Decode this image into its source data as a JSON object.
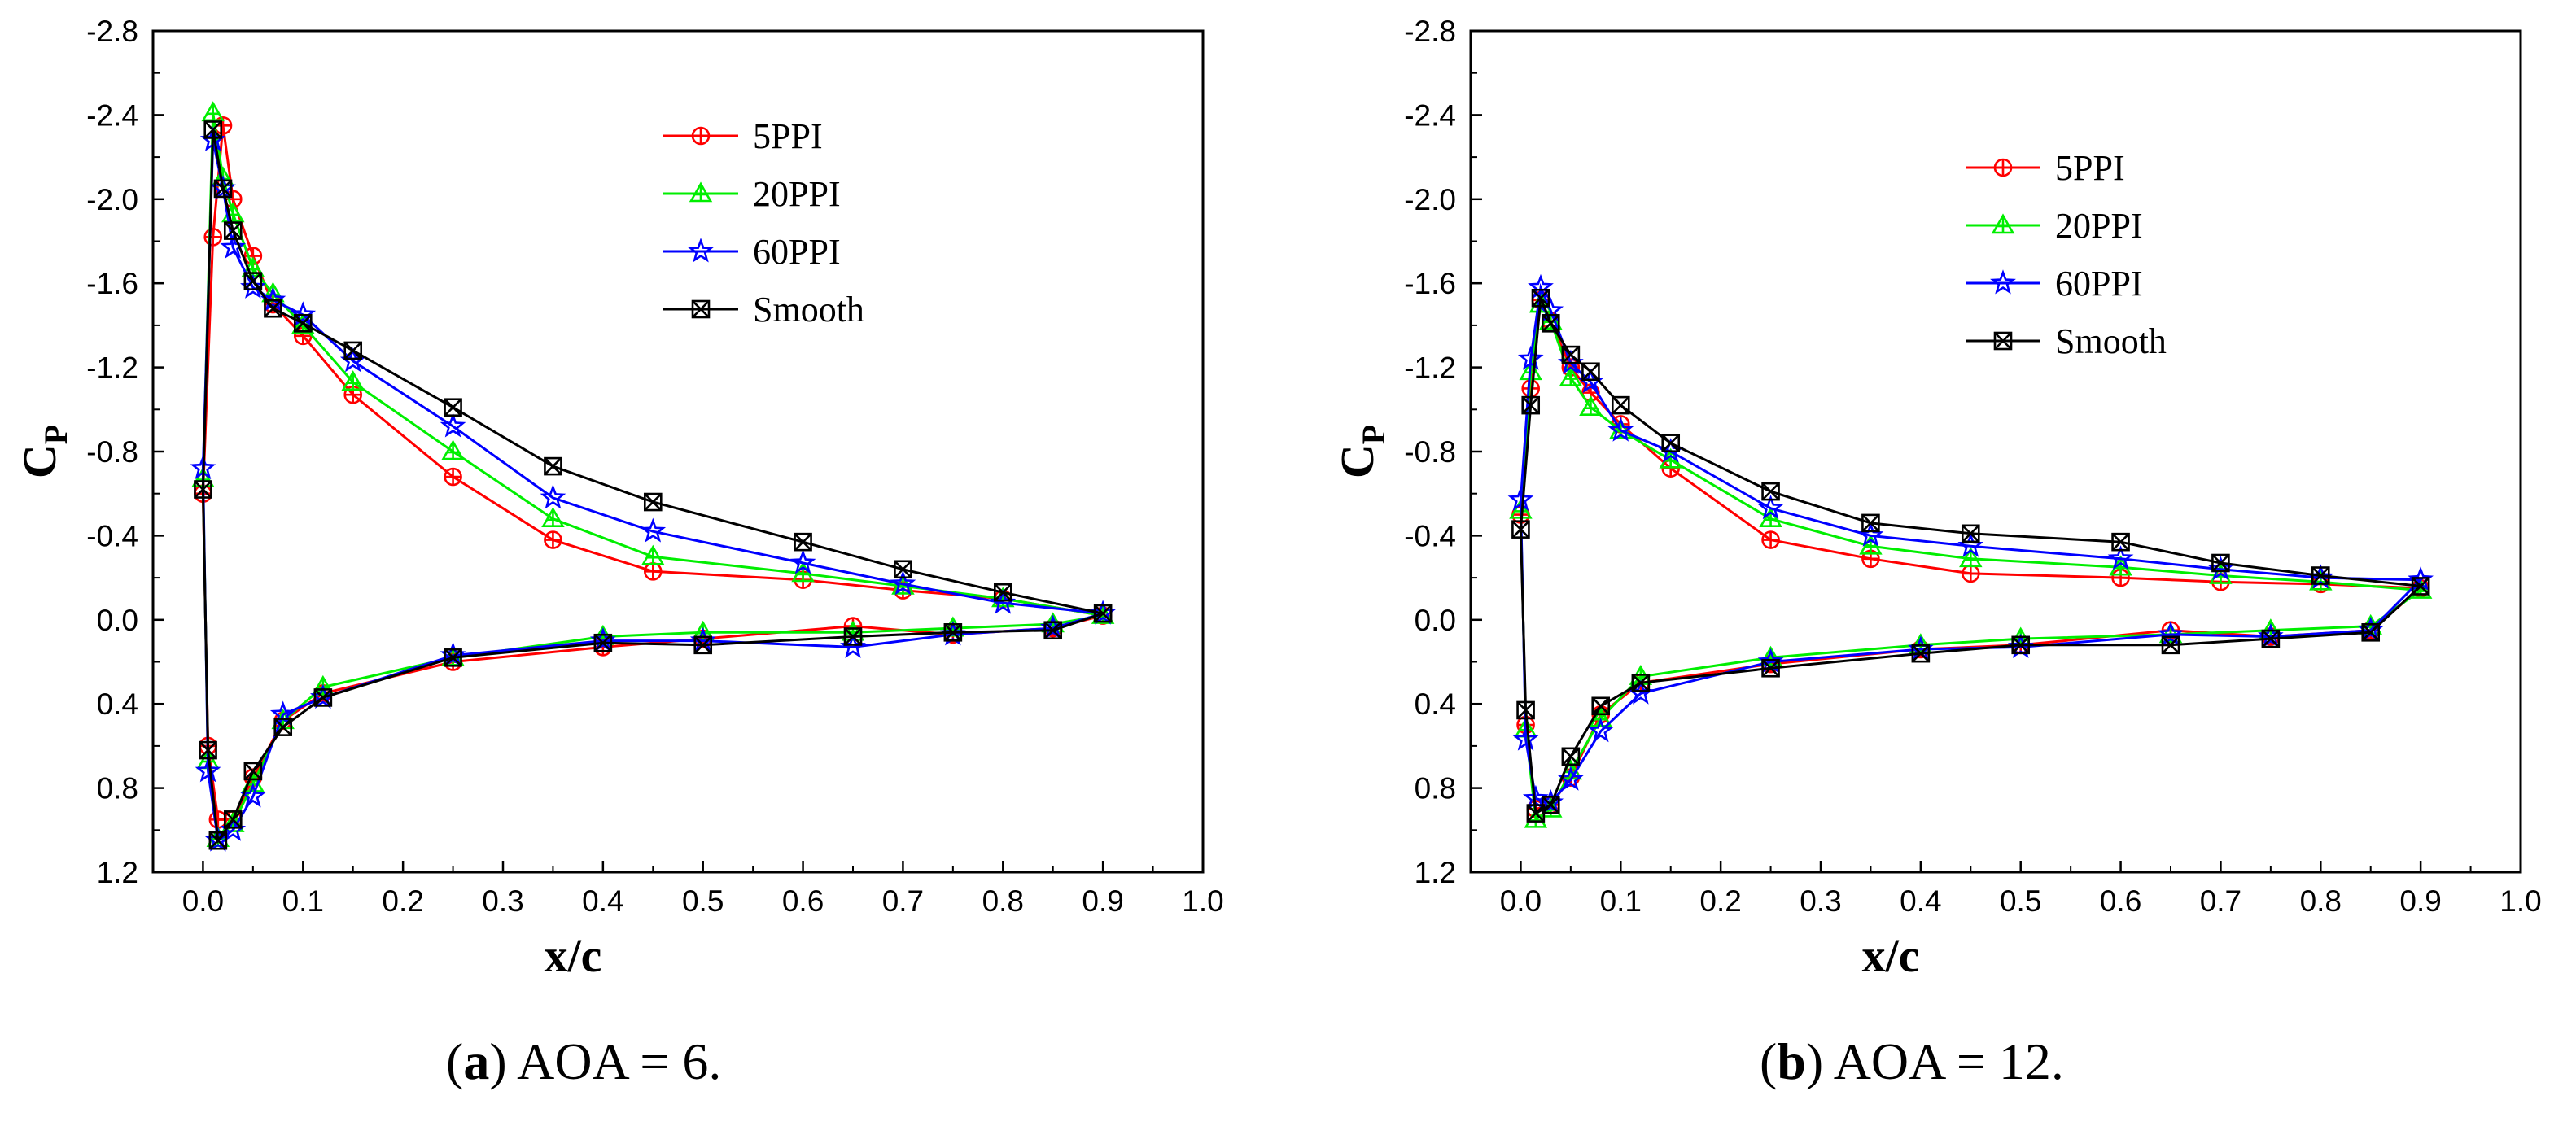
{
  "chart_data": [
    {
      "type": "line",
      "caption_letter": "a",
      "caption_text": "AOA = 6.",
      "xlabel": "x/c",
      "ylabel_main": "C",
      "ylabel_sub": "P",
      "xlim": [
        -0.05,
        1.0
      ],
      "ylim": [
        1.2,
        -2.8
      ],
      "x_ticks": [
        "0.0",
        "0.1",
        "0.2",
        "0.3",
        "0.4",
        "0.5",
        "0.6",
        "0.7",
        "0.8",
        "0.9",
        "1.0"
      ],
      "y_ticks": [
        "-2.8",
        "-2.4",
        "-2.0",
        "-1.6",
        "-1.2",
        "-0.8",
        "-0.4",
        "0.0",
        "0.4",
        "0.8",
        "1.2"
      ],
      "legend_position": "top-right",
      "series": [
        {
          "name": "5PPI",
          "color": "#ff0000",
          "marker": "circle-plus",
          "x": [
            0,
            0.01,
            0.02,
            0.03,
            0.05,
            0.07,
            0.1,
            0.15,
            0.25,
            0.35,
            0.45,
            0.6,
            0.7,
            0.8,
            0.9,
            0.85,
            0.75,
            0.65,
            0.5,
            0.4,
            0.25,
            0.12,
            0.08,
            0.05,
            0.03,
            0.015,
            0.005
          ],
          "y": [
            -0.6,
            -1.82,
            -2.35,
            -2.0,
            -1.73,
            -1.5,
            -1.35,
            -1.07,
            -0.68,
            -0.38,
            -0.23,
            -0.19,
            -0.14,
            -0.1,
            -0.02,
            0.04,
            0.07,
            0.03,
            0.09,
            0.13,
            0.2,
            0.35,
            0.48,
            0.75,
            0.95,
            0.95,
            0.6
          ]
        },
        {
          "name": "20PPI",
          "color": "#00ee00",
          "marker": "triangle-plus",
          "x": [
            0,
            0.01,
            0.02,
            0.03,
            0.05,
            0.07,
            0.1,
            0.15,
            0.25,
            0.35,
            0.45,
            0.6,
            0.7,
            0.8,
            0.9,
            0.85,
            0.75,
            0.65,
            0.5,
            0.4,
            0.25,
            0.12,
            0.08,
            0.05,
            0.03,
            0.015,
            0.005
          ],
          "y": [
            -0.67,
            -2.41,
            -2.1,
            -1.93,
            -1.67,
            -1.55,
            -1.4,
            -1.13,
            -0.8,
            -0.48,
            -0.3,
            -0.22,
            -0.16,
            -0.1,
            -0.02,
            0.02,
            0.04,
            0.06,
            0.06,
            0.08,
            0.18,
            0.32,
            0.48,
            0.78,
            0.97,
            1.04,
            0.67
          ]
        },
        {
          "name": "60PPI",
          "color": "#0000ff",
          "marker": "star",
          "x": [
            0,
            0.01,
            0.02,
            0.03,
            0.05,
            0.07,
            0.1,
            0.15,
            0.25,
            0.35,
            0.45,
            0.6,
            0.7,
            0.8,
            0.9,
            0.85,
            0.75,
            0.65,
            0.5,
            0.4,
            0.25,
            0.12,
            0.08,
            0.05,
            0.03,
            0.015,
            0.005
          ],
          "y": [
            -0.72,
            -2.28,
            -2.05,
            -1.77,
            -1.58,
            -1.52,
            -1.45,
            -1.23,
            -0.92,
            -0.58,
            -0.42,
            -0.27,
            -0.17,
            -0.08,
            -0.03,
            0.04,
            0.07,
            0.13,
            0.1,
            0.1,
            0.17,
            0.37,
            0.45,
            0.84,
            1.0,
            1.05,
            0.72
          ]
        },
        {
          "name": "Smooth",
          "color": "#000000",
          "marker": "box-x",
          "x": [
            0,
            0.01,
            0.02,
            0.03,
            0.05,
            0.07,
            0.1,
            0.15,
            0.25,
            0.35,
            0.45,
            0.6,
            0.7,
            0.8,
            0.9,
            0.85,
            0.75,
            0.65,
            0.5,
            0.4,
            0.25,
            0.12,
            0.08,
            0.05,
            0.03,
            0.015,
            0.005
          ],
          "y": [
            -0.62,
            -2.33,
            -2.05,
            -1.85,
            -1.61,
            -1.48,
            -1.41,
            -1.28,
            -1.01,
            -0.73,
            -0.56,
            -0.37,
            -0.24,
            -0.13,
            -0.03,
            0.05,
            0.06,
            0.08,
            0.12,
            0.11,
            0.18,
            0.37,
            0.51,
            0.72,
            0.95,
            1.05,
            0.62
          ]
        }
      ]
    },
    {
      "type": "line",
      "caption_letter": "b",
      "caption_text": "AOA = 12.",
      "xlabel": "x/c",
      "ylabel_main": "C",
      "ylabel_sub": "P",
      "xlim": [
        -0.05,
        1.0
      ],
      "ylim": [
        1.2,
        -2.8
      ],
      "x_ticks": [
        "0.0",
        "0.1",
        "0.2",
        "0.3",
        "0.4",
        "0.5",
        "0.6",
        "0.7",
        "0.8",
        "0.9",
        "1.0"
      ],
      "y_ticks": [
        "-2.8",
        "-2.4",
        "-2.0",
        "-1.6",
        "-1.2",
        "-0.8",
        "-0.4",
        "0.0",
        "0.4",
        "0.8",
        "1.2"
      ],
      "legend_position": "top-right",
      "series": [
        {
          "name": "5PPI",
          "color": "#ff0000",
          "marker": "circle-plus",
          "x": [
            0,
            0.01,
            0.02,
            0.03,
            0.05,
            0.07,
            0.1,
            0.15,
            0.25,
            0.35,
            0.45,
            0.6,
            0.7,
            0.8,
            0.9,
            0.85,
            0.75,
            0.65,
            0.5,
            0.4,
            0.25,
            0.12,
            0.08,
            0.05,
            0.03,
            0.015,
            0.005
          ],
          "y": [
            -0.5,
            -1.1,
            -1.52,
            -1.42,
            -1.2,
            -1.08,
            -0.93,
            -0.72,
            -0.38,
            -0.29,
            -0.22,
            -0.2,
            -0.18,
            -0.17,
            -0.15,
            0.05,
            0.08,
            0.05,
            0.12,
            0.14,
            0.21,
            0.3,
            0.45,
            0.75,
            0.88,
            0.9,
            0.5
          ]
        },
        {
          "name": "20PPI",
          "color": "#00ee00",
          "marker": "triangle-plus",
          "x": [
            0,
            0.01,
            0.02,
            0.03,
            0.05,
            0.07,
            0.1,
            0.15,
            0.25,
            0.35,
            0.45,
            0.6,
            0.7,
            0.8,
            0.9,
            0.85,
            0.75,
            0.65,
            0.5,
            0.4,
            0.25,
            0.12,
            0.08,
            0.05,
            0.03,
            0.015,
            0.005
          ],
          "y": [
            -0.52,
            -1.18,
            -1.5,
            -1.42,
            -1.15,
            -1.01,
            -0.9,
            -0.76,
            -0.48,
            -0.35,
            -0.29,
            -0.25,
            -0.21,
            -0.18,
            -0.14,
            0.03,
            0.05,
            0.07,
            0.09,
            0.12,
            0.18,
            0.27,
            0.47,
            0.72,
            0.9,
            0.95,
            0.52
          ]
        },
        {
          "name": "60PPI",
          "color": "#0000ff",
          "marker": "star",
          "x": [
            0,
            0.01,
            0.02,
            0.03,
            0.05,
            0.07,
            0.1,
            0.15,
            0.25,
            0.35,
            0.45,
            0.6,
            0.7,
            0.8,
            0.9,
            0.85,
            0.75,
            0.65,
            0.5,
            0.4,
            0.25,
            0.12,
            0.08,
            0.05,
            0.03,
            0.015,
            0.005
          ],
          "y": [
            -0.57,
            -1.24,
            -1.58,
            -1.47,
            -1.22,
            -1.13,
            -0.9,
            -0.8,
            -0.53,
            -0.4,
            -0.35,
            -0.29,
            -0.24,
            -0.2,
            -0.19,
            0.05,
            0.08,
            0.07,
            0.13,
            0.14,
            0.2,
            0.35,
            0.53,
            0.76,
            0.87,
            0.85,
            0.57
          ]
        },
        {
          "name": "Smooth",
          "color": "#000000",
          "marker": "box-x",
          "x": [
            0,
            0.01,
            0.02,
            0.03,
            0.05,
            0.07,
            0.1,
            0.15,
            0.25,
            0.35,
            0.45,
            0.6,
            0.7,
            0.8,
            0.9,
            0.85,
            0.75,
            0.65,
            0.5,
            0.4,
            0.25,
            0.12,
            0.08,
            0.05,
            0.03,
            0.015,
            0.005
          ],
          "y": [
            -0.43,
            -1.02,
            -1.53,
            -1.41,
            -1.26,
            -1.18,
            -1.02,
            -0.84,
            -0.61,
            -0.46,
            -0.41,
            -0.37,
            -0.27,
            -0.21,
            -0.16,
            0.06,
            0.09,
            0.12,
            0.12,
            0.16,
            0.23,
            0.3,
            0.41,
            0.65,
            0.88,
            0.92,
            0.43
          ]
        }
      ]
    }
  ]
}
